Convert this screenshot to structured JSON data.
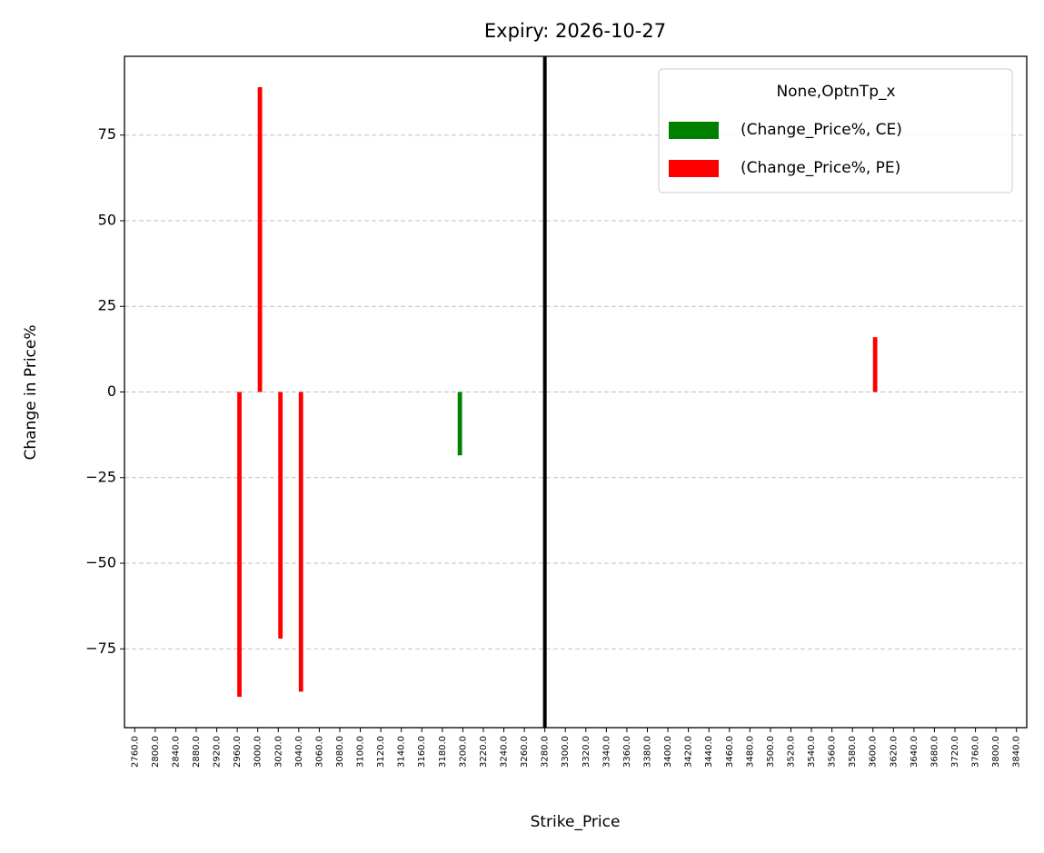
{
  "chart_data": {
    "type": "bar",
    "title": "Expiry: 2026-10-27",
    "x_label": "Strike_Price",
    "y_label": "Change in Price%",
    "legend_title": "None,OptnTp_x",
    "legend_position": "upper right",
    "categories": [
      "2760.0",
      "2800.0",
      "2840.0",
      "2880.0",
      "2920.0",
      "2960.0",
      "3000.0",
      "3020.0",
      "3040.0",
      "3060.0",
      "3080.0",
      "3100.0",
      "3120.0",
      "3140.0",
      "3160.0",
      "3180.0",
      "3200.0",
      "3220.0",
      "3240.0",
      "3260.0",
      "3280.0",
      "3300.0",
      "3320.0",
      "3340.0",
      "3360.0",
      "3380.0",
      "3400.0",
      "3420.0",
      "3440.0",
      "3460.0",
      "3480.0",
      "3500.0",
      "3520.0",
      "3540.0",
      "3560.0",
      "3580.0",
      "3600.0",
      "3620.0",
      "3640.0",
      "3680.0",
      "3720.0",
      "3760.0",
      "3800.0",
      "3840.0"
    ],
    "series": [
      {
        "name": "(Change_Price%, CE)",
        "color": "#008000",
        "values": [
          null,
          null,
          null,
          null,
          null,
          null,
          null,
          null,
          null,
          null,
          null,
          null,
          null,
          null,
          null,
          null,
          -18.5,
          null,
          null,
          null,
          null,
          null,
          null,
          null,
          null,
          null,
          null,
          null,
          null,
          null,
          null,
          null,
          null,
          null,
          null,
          null,
          null,
          null,
          null,
          null,
          null,
          null,
          null,
          null
        ]
      },
      {
        "name": "(Change_Price%, PE)",
        "color": "#ff0000",
        "values": [
          null,
          null,
          null,
          null,
          null,
          -89,
          89,
          -72,
          -87.5,
          null,
          null,
          null,
          null,
          null,
          null,
          null,
          null,
          null,
          null,
          null,
          null,
          null,
          null,
          null,
          null,
          null,
          null,
          null,
          null,
          null,
          null,
          null,
          null,
          null,
          null,
          null,
          16,
          null,
          null,
          null,
          null,
          null,
          null,
          null
        ]
      }
    ],
    "vline": "3280.0",
    "ylim": [
      -98,
      98
    ],
    "yticks": [
      {
        "value": -75,
        "label": "−75"
      },
      {
        "value": -50,
        "label": "−50"
      },
      {
        "value": -25,
        "label": "−25"
      },
      0,
      25,
      50,
      75
    ],
    "grid": true
  }
}
